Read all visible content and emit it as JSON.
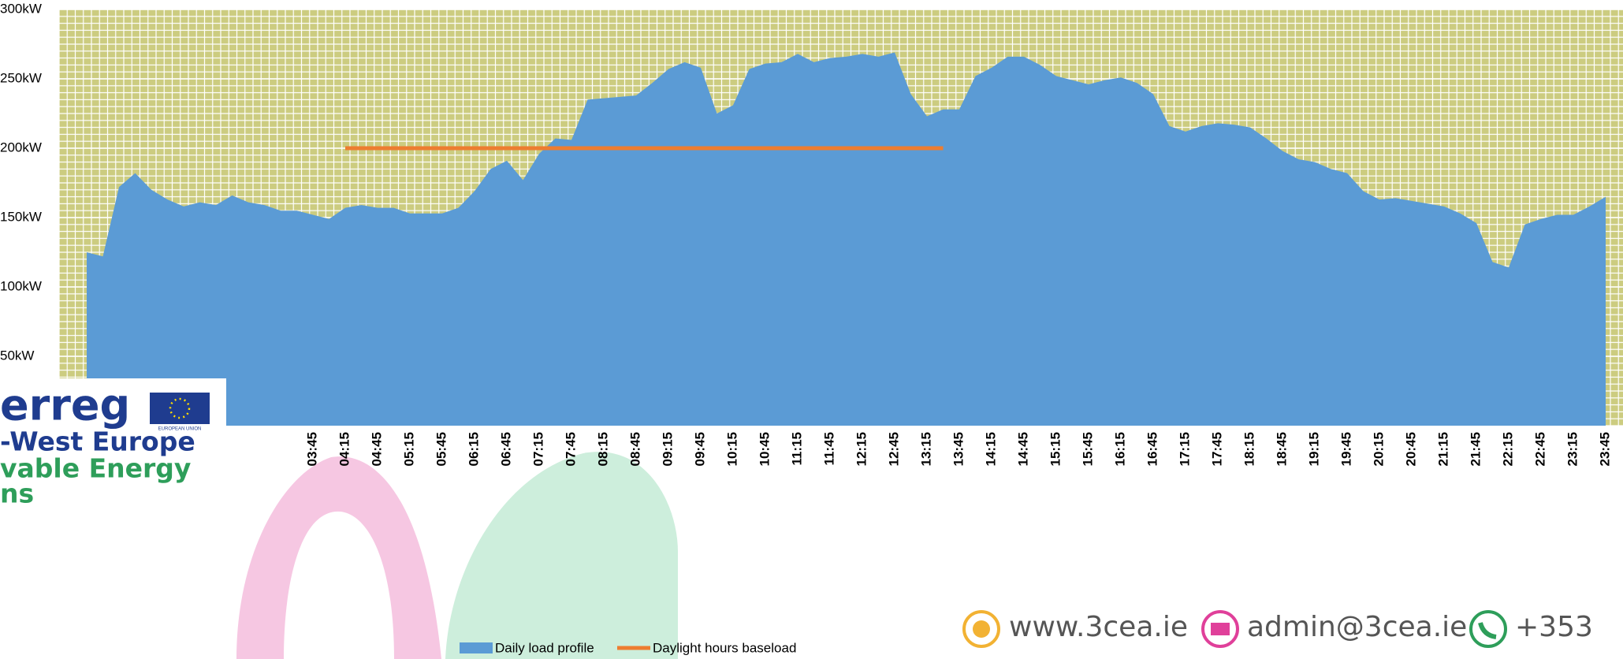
{
  "chart_data": {
    "type": "area",
    "categories": [
      null,
      null,
      null,
      null,
      null,
      null,
      null,
      null,
      null,
      null,
      null,
      null,
      null,
      null,
      "03:45",
      null,
      "04:15",
      null,
      "04:45",
      null,
      "05:15",
      null,
      "05:45",
      null,
      "06:15",
      null,
      "06:45",
      null,
      "07:15",
      null,
      "07:45",
      null,
      "08:15",
      null,
      "08:45",
      null,
      "09:15",
      null,
      "09:45",
      null,
      "10:15",
      null,
      "10:45",
      null,
      "11:15",
      null,
      "11:45",
      null,
      "12:15",
      null,
      "12:45",
      null,
      "13:15",
      null,
      "13:45",
      null,
      "14:15",
      null,
      "14:45",
      null,
      "15:15",
      null,
      "15:45",
      null,
      "16:15",
      null,
      "16:45",
      null,
      "17:15",
      null,
      "17:45",
      null,
      "18:15",
      null,
      "18:45",
      null,
      "19:15",
      null,
      "19:45",
      null,
      "20:15",
      null,
      "20:45",
      null,
      "21:15",
      null,
      "21:45",
      null,
      "22:15",
      null,
      "22:45",
      null,
      "23:15",
      null,
      "23:45"
    ],
    "series": [
      {
        "name": "Daily load profile",
        "color": "#5b9bd5",
        "kind": "area",
        "values": [
          125,
          122,
          172,
          182,
          170,
          163,
          158,
          161,
          159,
          166,
          161,
          159,
          155,
          155,
          152,
          149,
          157,
          159,
          157,
          157,
          153,
          153,
          153,
          157,
          169,
          185,
          191,
          177,
          196,
          207,
          206,
          235,
          236,
          237,
          238,
          247,
          257,
          262,
          258,
          225,
          231,
          257,
          261,
          262,
          268,
          262,
          265,
          266,
          268,
          266,
          269,
          239,
          223,
          228,
          228,
          252,
          258,
          266,
          266,
          260,
          252,
          249,
          246,
          249,
          251,
          247,
          239,
          216,
          212,
          216,
          218,
          217,
          215,
          207,
          198,
          192,
          190,
          185,
          182,
          169,
          163,
          164,
          162,
          160,
          158,
          153,
          146,
          118,
          114,
          145,
          149,
          152,
          152,
          158,
          165
        ]
      },
      {
        "name": "Daylight hours baseload",
        "color": "#ed7d31",
        "kind": "line",
        "values": [
          null,
          null,
          null,
          null,
          null,
          null,
          null,
          null,
          null,
          null,
          null,
          null,
          null,
          null,
          null,
          null,
          200,
          200,
          200,
          200,
          200,
          200,
          200,
          200,
          200,
          200,
          200,
          200,
          200,
          200,
          200,
          200,
          200,
          200,
          200,
          200,
          200,
          200,
          200,
          200,
          200,
          200,
          200,
          200,
          200,
          200,
          200,
          200,
          200,
          200,
          200,
          200,
          200,
          200,
          null,
          null,
          null,
          null,
          null,
          null,
          null,
          null,
          null,
          null,
          null,
          null,
          null,
          null,
          null,
          null,
          null,
          null,
          null,
          null,
          null,
          null,
          null,
          null,
          null,
          null,
          null,
          null,
          null,
          null,
          null,
          null,
          null,
          null,
          null,
          null,
          null,
          null,
          null,
          null,
          null
        ]
      }
    ],
    "ylim": [
      0,
      300
    ],
    "yticks": [
      {
        "value": 50,
        "label": "50kW"
      },
      {
        "value": 100,
        "label": "100kW"
      },
      {
        "value": 150,
        "label": "150kW"
      },
      {
        "value": 200,
        "label": "200kW"
      },
      {
        "value": 250,
        "label": "250kW"
      },
      {
        "value": 300,
        "label": "300kW"
      }
    ],
    "grid": true,
    "background": "#cccc80",
    "legend": "bottom"
  },
  "footer": {
    "logo_lines": [
      "erreg",
      "-West Europe",
      "vable Energy",
      "ns"
    ],
    "eu_caption": "EUROPEAN UNION",
    "contacts": [
      "www.3cea.ie",
      "admin@3cea.ie",
      "+353"
    ]
  }
}
